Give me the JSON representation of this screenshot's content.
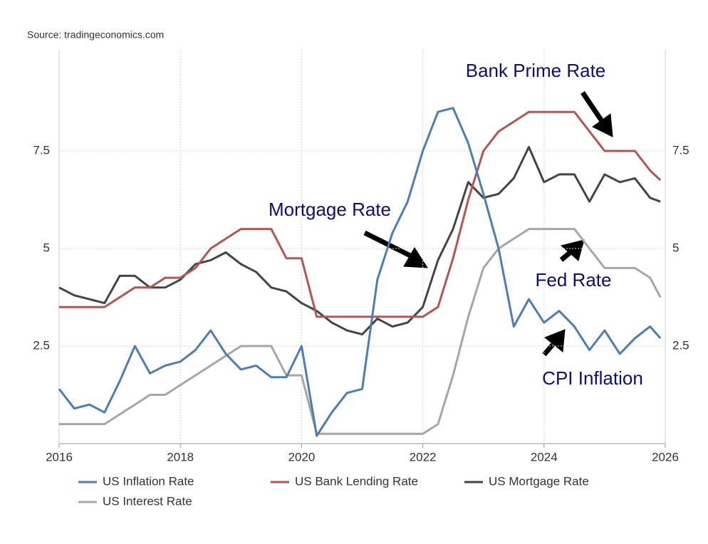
{
  "chart_data": {
    "type": "line",
    "source": "Source: tradingeconomics.com",
    "annotations": [
      "Bank Prime Rate",
      "Mortgage Rate",
      "Fed Rate",
      "CPI Inflation"
    ],
    "x": [
      2016,
      2016.25,
      2016.5,
      2016.75,
      2017,
      2017.25,
      2017.5,
      2017.75,
      2018,
      2018.25,
      2018.5,
      2018.75,
      2019,
      2019.25,
      2019.5,
      2019.75,
      2020,
      2020.25,
      2020.5,
      2020.75,
      2021,
      2021.25,
      2021.5,
      2021.75,
      2022,
      2022.25,
      2022.5,
      2022.75,
      2023,
      2023.25,
      2023.5,
      2023.75,
      2024,
      2024.25,
      2024.5,
      2024.75,
      2025,
      2025.25,
      2025.5,
      2025.75,
      2025.92
    ],
    "series": [
      {
        "name": "US Inflation Rate",
        "color": "#4a7ebb",
        "values": [
          1.4,
          0.9,
          1.0,
          0.8,
          1.6,
          2.5,
          1.8,
          2.0,
          2.1,
          2.4,
          2.9,
          2.3,
          1.9,
          2.0,
          1.7,
          1.7,
          2.5,
          0.2,
          0.8,
          1.3,
          1.4,
          4.2,
          5.4,
          6.2,
          7.5,
          8.5,
          8.6,
          7.7,
          6.4,
          5.0,
          3.0,
          3.7,
          3.1,
          3.4,
          3.0,
          2.4,
          2.9,
          2.3,
          2.7,
          3.0,
          2.7
        ]
      },
      {
        "name": "US Bank Lending Rate",
        "color": "#b85450",
        "values": [
          3.5,
          3.5,
          3.5,
          3.5,
          3.75,
          4.0,
          4.0,
          4.25,
          4.25,
          4.5,
          5.0,
          5.25,
          5.5,
          5.5,
          5.5,
          4.75,
          4.75,
          3.25,
          3.25,
          3.25,
          3.25,
          3.25,
          3.25,
          3.25,
          3.25,
          3.5,
          4.75,
          6.25,
          7.5,
          8.0,
          8.25,
          8.5,
          8.5,
          8.5,
          8.5,
          8.0,
          7.5,
          7.5,
          7.5,
          7.0,
          6.75
        ]
      },
      {
        "name": "US Mortgage Rate",
        "color": "#444444",
        "values": [
          4.0,
          3.8,
          3.7,
          3.6,
          4.3,
          4.3,
          4.0,
          4.0,
          4.2,
          4.6,
          4.7,
          4.9,
          4.6,
          4.4,
          4.0,
          3.9,
          3.6,
          3.4,
          3.1,
          2.9,
          2.8,
          3.2,
          3.0,
          3.1,
          3.5,
          4.7,
          5.5,
          6.7,
          6.3,
          6.4,
          6.8,
          7.6,
          6.7,
          6.9,
          6.9,
          6.2,
          6.9,
          6.7,
          6.8,
          6.3,
          6.2
        ]
      },
      {
        "name": "US Interest Rate",
        "color": "#a6a6a6",
        "values": [
          0.5,
          0.5,
          0.5,
          0.5,
          0.75,
          1.0,
          1.25,
          1.25,
          1.5,
          1.75,
          2.0,
          2.25,
          2.5,
          2.5,
          2.5,
          1.75,
          1.75,
          0.25,
          0.25,
          0.25,
          0.25,
          0.25,
          0.25,
          0.25,
          0.25,
          0.5,
          1.75,
          3.25,
          4.5,
          5.0,
          5.25,
          5.5,
          5.5,
          5.5,
          5.5,
          5.0,
          4.5,
          4.5,
          4.5,
          4.25,
          3.75
        ]
      }
    ],
    "xlim": [
      2016,
      2026
    ],
    "xticks": [
      2016,
      2018,
      2020,
      2022,
      2024,
      2026
    ],
    "ylim": [
      0,
      10
    ],
    "yticks": [
      2.5,
      5,
      7.5
    ],
    "y2lim": [
      0,
      10
    ],
    "y2ticks": [
      2.5,
      5,
      7.5
    ],
    "grid": true,
    "annotation_color": "#0d0d7a"
  }
}
